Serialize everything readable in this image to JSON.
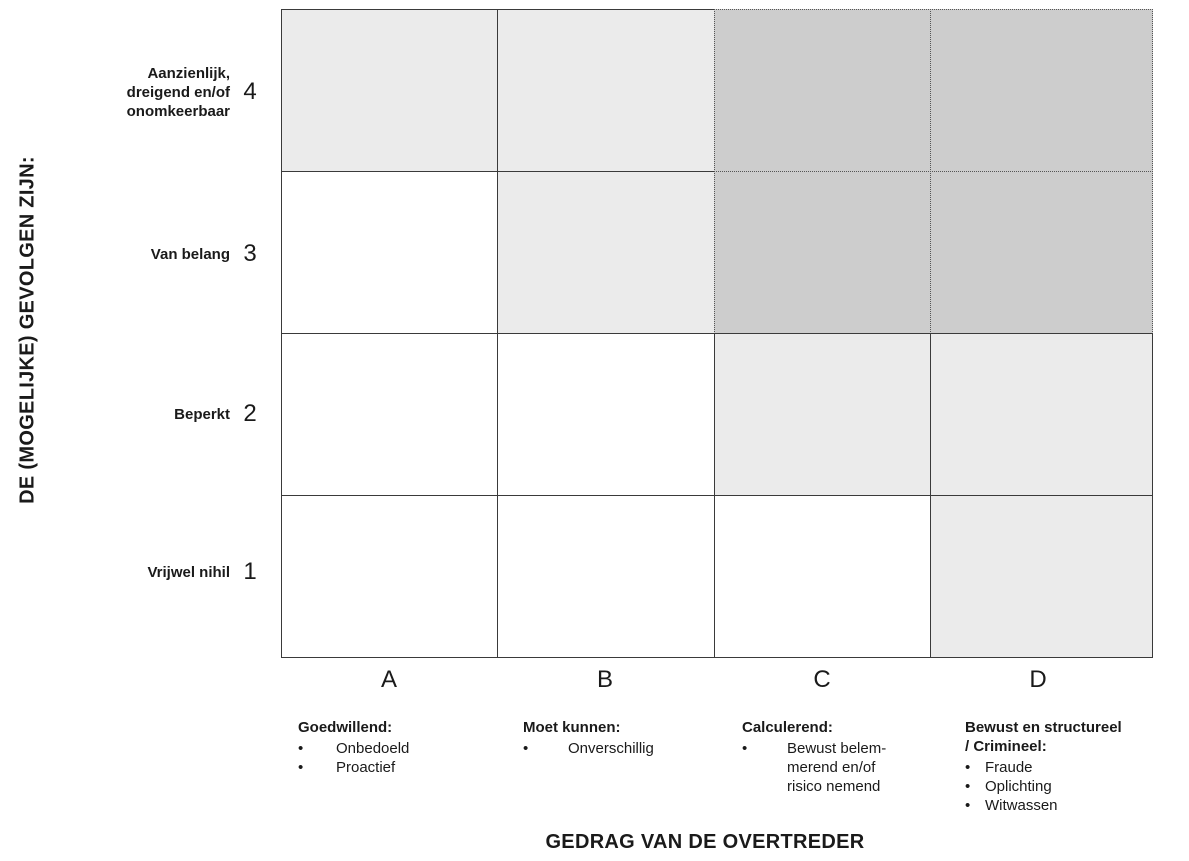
{
  "y_axis_title": "DE (MOGELIJKE) GEVOLGEN ZIJN:",
  "x_axis_title": "GEDRAG VAN DE OVERTREDER",
  "rows": [
    {
      "label_lines": [
        "Aanzienlijk,",
        "dreigend en/of",
        "onomkeerbaar"
      ],
      "number": "4"
    },
    {
      "label_lines": [
        "Van belang"
      ],
      "number": "3"
    },
    {
      "label_lines": [
        "Beperkt"
      ],
      "number": "2"
    },
    {
      "label_lines": [
        "Vrijwel nihil"
      ],
      "number": "1"
    }
  ],
  "columns": [
    {
      "letter": "A",
      "title_lines": [
        "Goedwillend:"
      ],
      "items": [
        "Onbedoeld",
        "Proactief"
      ]
    },
    {
      "letter": "B",
      "title_lines": [
        "Moet kunnen:"
      ],
      "items": [
        "Onverschillig"
      ]
    },
    {
      "letter": "C",
      "title_lines": [
        "Calculerend:"
      ],
      "items": [
        "Bewust belem-\nmerend en/of\nrisico nemend"
      ]
    },
    {
      "letter": "D",
      "title_lines": [
        "Bewust en structureel",
        "/ Crimineel:"
      ],
      "items": [
        "Fraude",
        "Oplichting",
        "Witwassen"
      ]
    }
  ],
  "cell_shading": [
    [
      "light",
      "light",
      "dark",
      "dark"
    ],
    [
      "white",
      "light",
      "dark",
      "dark"
    ],
    [
      "white",
      "white",
      "light",
      "light"
    ],
    [
      "white",
      "white",
      "white",
      "light"
    ]
  ],
  "colors": {
    "white": "#ffffff",
    "light": "#ebebeb",
    "dark": "#cdcdcd",
    "border": "#3a3a3a"
  }
}
